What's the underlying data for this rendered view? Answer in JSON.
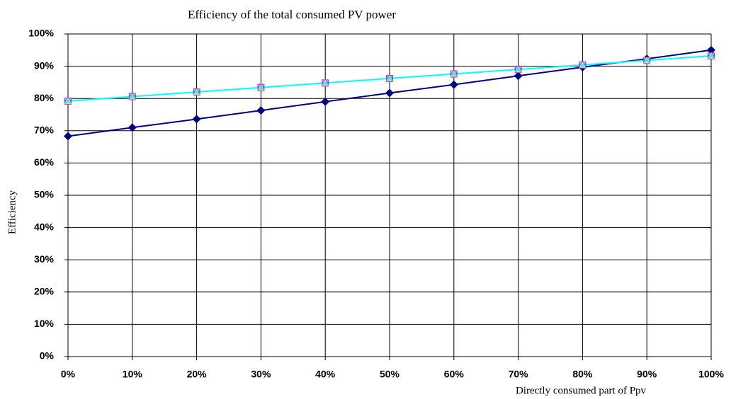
{
  "chart_data": {
    "type": "line",
    "title": "Efficiency of the total consumed PV power",
    "x_label": "Directly consumed part of Ppv",
    "y_label": "Efficiency",
    "x": [
      0,
      10,
      20,
      30,
      40,
      50,
      60,
      70,
      80,
      90,
      100
    ],
    "series": [
      {
        "color": "#000080",
        "marker": "diamond",
        "values": [
          68.3,
          71,
          73.6,
          76.3,
          79,
          81.7,
          84.3,
          87,
          89.7,
          92.3,
          95
        ]
      },
      {
        "color": "#ff00ff",
        "marker": "square",
        "values": [
          79.2,
          80.6,
          82,
          83.4,
          84.8,
          86.2,
          87.6,
          89,
          90.4,
          91.8,
          93.2
        ]
      },
      {
        "color": "#ffff00",
        "marker": "triangle",
        "values": [
          79.2,
          80.6,
          82,
          83.4,
          84.8,
          86.2,
          87.6,
          89,
          90.4,
          91.8,
          93.2
        ]
      },
      {
        "color": "#00ffff",
        "marker": "cross",
        "values": [
          79.2,
          80.6,
          82,
          83.4,
          84.8,
          86.2,
          87.6,
          89,
          90.4,
          91.8,
          93.2
        ]
      }
    ],
    "xlim": [
      0,
      100
    ],
    "xticks": [
      {
        "value": 0,
        "label": "0%"
      },
      {
        "value": 10,
        "label": "10%"
      },
      {
        "value": 20,
        "label": "20%"
      },
      {
        "value": 30,
        "label": "30%"
      },
      {
        "value": 40,
        "label": "40%"
      },
      {
        "value": 50,
        "label": "50%"
      },
      {
        "value": 60,
        "label": "60%"
      },
      {
        "value": 70,
        "label": "70%"
      },
      {
        "value": 80,
        "label": "80%"
      },
      {
        "value": 90,
        "label": "90%"
      },
      {
        "value": 100,
        "label": "100%"
      }
    ],
    "ylim": [
      0,
      100
    ],
    "yticks": [
      {
        "value": 0,
        "label": "0%"
      },
      {
        "value": 10,
        "label": "10%"
      },
      {
        "value": 20,
        "label": "20%"
      },
      {
        "value": 30,
        "label": "30%"
      },
      {
        "value": 40,
        "label": "40%"
      },
      {
        "value": 50,
        "label": "50%"
      },
      {
        "value": 60,
        "label": "60%"
      },
      {
        "value": 70,
        "label": "70%"
      },
      {
        "value": 80,
        "label": "80%"
      },
      {
        "value": 90,
        "label": "90%"
      },
      {
        "value": 100,
        "label": "100%"
      }
    ],
    "grid": true
  }
}
